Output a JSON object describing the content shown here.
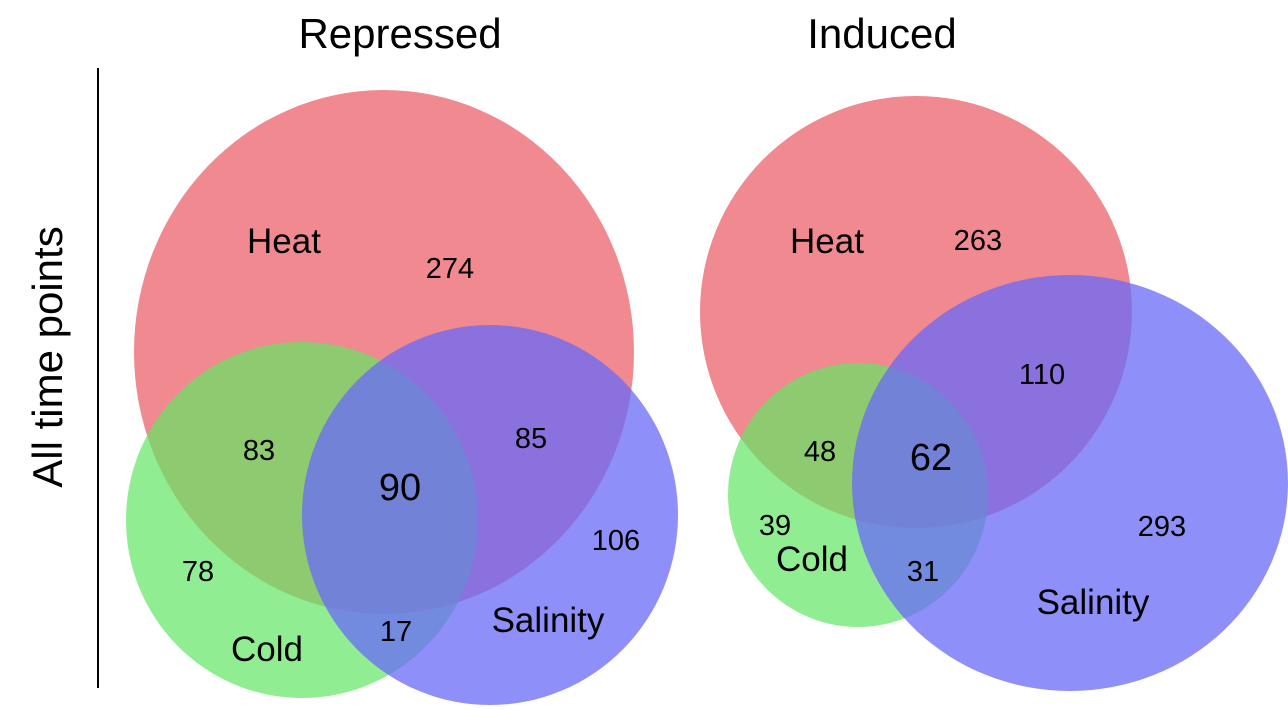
{
  "figure": {
    "row_label": "All time points",
    "colors": {
      "heat": "#ec6b74",
      "cold": "#62e562",
      "salinity": "#6a6af8"
    },
    "panels": [
      {
        "title": "Repressed",
        "labels": {
          "heat": "Heat",
          "cold": "Cold",
          "salinity": "Salinity"
        },
        "counts": {
          "heat_only": "274",
          "cold_only": "78",
          "salinity_only": "106",
          "heat_cold": "83",
          "heat_salinity": "85",
          "cold_salinity": "17",
          "all_three": "90"
        }
      },
      {
        "title": "Induced",
        "labels": {
          "heat": "Heat",
          "cold": "Cold",
          "salinity": "Salinity"
        },
        "counts": {
          "heat_only": "263",
          "cold_only": "39",
          "salinity_only": "293",
          "heat_cold": "48",
          "heat_salinity": "110",
          "cold_salinity": "31",
          "all_three": "62"
        }
      }
    ]
  }
}
